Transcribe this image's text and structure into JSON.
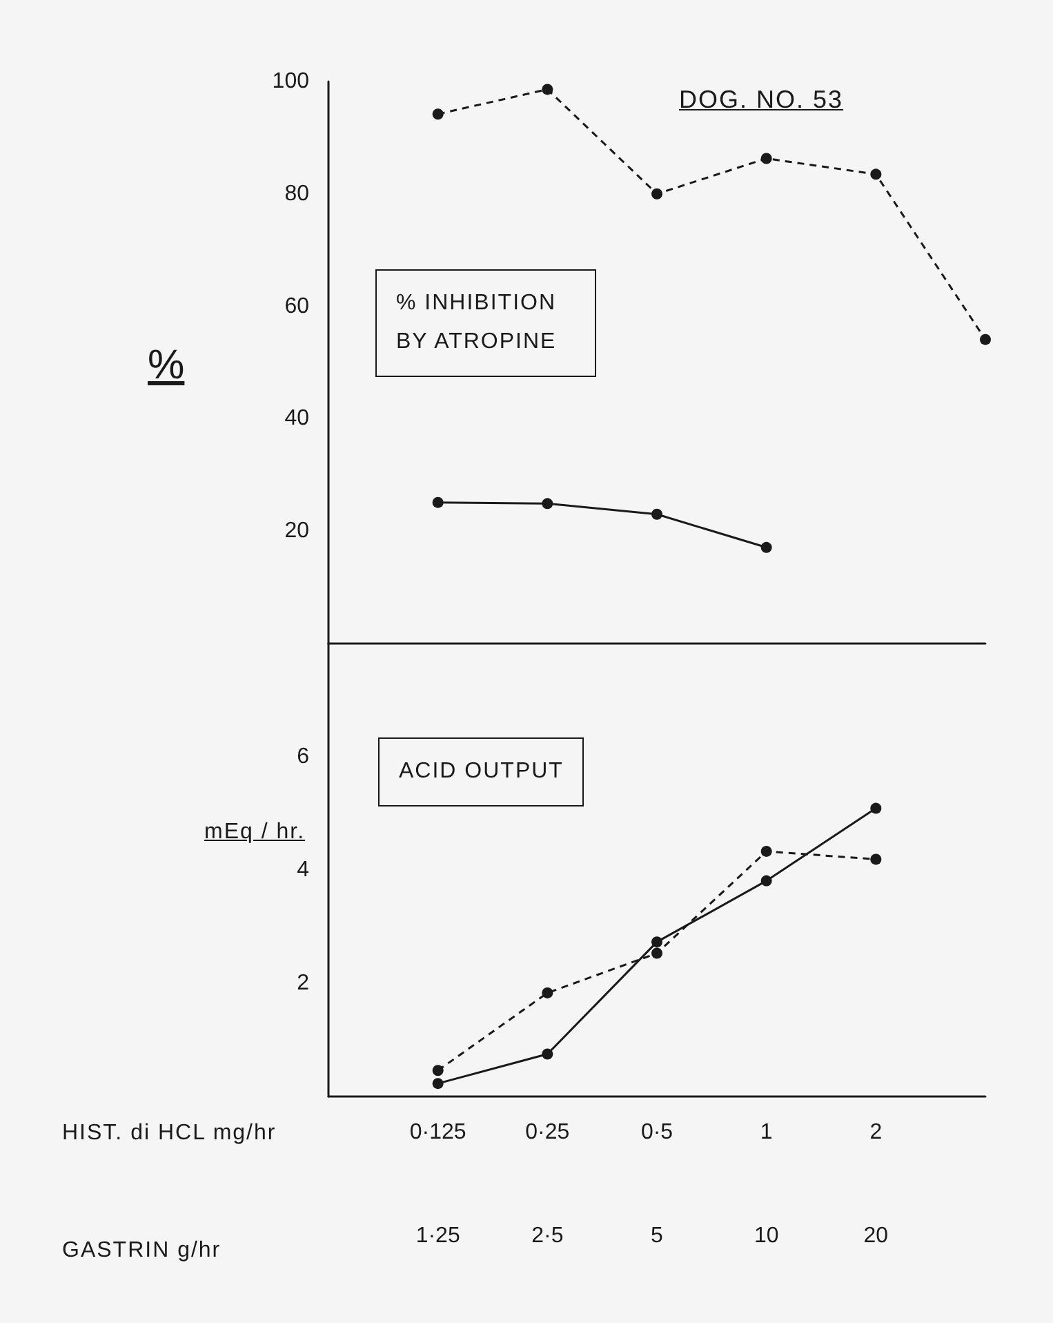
{
  "chart_data": [
    {
      "type": "line",
      "title": "DOG. NO. 53",
      "ylabel": "%",
      "series": [
        {
          "color": "#1a1a1a",
          "line_style": "dashed",
          "values": [
            null,
            94.2,
            98.6,
            80,
            86.3,
            83.5,
            54.1
          ]
        },
        {
          "color": "#1a1a1a",
          "line_style": "solid",
          "values": [
            null,
            25.1,
            24.9,
            23,
            17.1,
            null,
            null
          ]
        }
      ],
      "annotations": [
        "% INHIBITION BY ATROPINE"
      ],
      "ylim": [
        0,
        100
      ],
      "yticks": [
        20,
        40,
        60,
        80,
        100
      ],
      "grid": false,
      "marker": "circle",
      "tick_labels": "y"
    },
    {
      "type": "line",
      "ylabel": "mEq / hr.",
      "xlabel": "HIST. di HCL mg/hr",
      "categories": [
        null,
        "0·125",
        "0·25",
        "0·5",
        "1",
        "2",
        null
      ],
      "series": [
        {
          "color": "#1a1a1a",
          "line_style": "dashed",
          "values": [
            null,
            0.46,
            1.83,
            2.53,
            4.33,
            4.19,
            null
          ]
        },
        {
          "color": "#1a1a1a",
          "line_style": "solid",
          "values": [
            null,
            0.23,
            0.75,
            2.73,
            3.81,
            5.09,
            null
          ]
        }
      ],
      "annotations": [
        "ACID OUTPUT",
        "GASTRIN g/hr",
        "1·25",
        "2·5",
        "5",
        "10",
        "20"
      ],
      "ylim": [
        0,
        8
      ],
      "yticks": [
        2,
        4,
        6
      ],
      "grid": false,
      "marker": "circle"
    }
  ]
}
